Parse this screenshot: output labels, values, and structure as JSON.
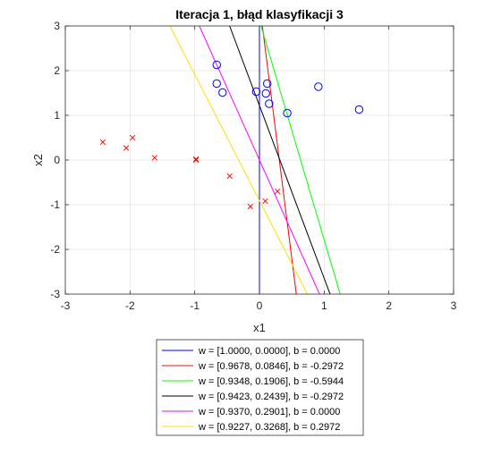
{
  "chart_data": {
    "type": "scatter",
    "title": "Iteracja 1, błąd klasyfikacji 3",
    "xlabel": "x1",
    "ylabel": "x2",
    "xlim": [
      -3,
      3
    ],
    "ylim": [
      -3,
      3
    ],
    "xticks": [
      -3,
      -2,
      -1,
      0,
      1,
      2,
      3
    ],
    "yticks": [
      -3,
      -2,
      -1,
      0,
      1,
      2,
      3
    ],
    "xtick_labels": [
      "-3",
      "-2",
      "-1",
      "0",
      "1",
      "2",
      "3"
    ],
    "ytick_labels": [
      "-3",
      "-2",
      "-1",
      "0",
      "1",
      "2",
      "3"
    ],
    "grid": true,
    "legend_position": "bottom-outside",
    "point_sets": [
      {
        "marker": "circle",
        "color": "#0000ff",
        "points": [
          [
            -0.66,
            2.13
          ],
          [
            -0.66,
            1.71
          ],
          [
            -0.57,
            1.51
          ],
          [
            -0.05,
            1.53
          ],
          [
            0.12,
            1.71
          ],
          [
            0.1,
            1.49
          ],
          [
            0.15,
            1.26
          ],
          [
            0.43,
            1.05
          ],
          [
            0.91,
            1.64
          ],
          [
            1.54,
            1.13
          ]
        ]
      },
      {
        "marker": "x",
        "color": "#ff0000",
        "points": [
          [
            -2.42,
            0.4
          ],
          [
            -2.06,
            0.27
          ],
          [
            -1.96,
            0.5
          ],
          [
            -1.62,
            0.05
          ],
          [
            -0.98,
            0.02
          ],
          [
            -0.98,
            0.0
          ],
          [
            -0.46,
            -0.36
          ],
          [
            -0.14,
            -1.04
          ],
          [
            0.09,
            -0.92
          ],
          [
            0.28,
            -0.7
          ]
        ]
      }
    ],
    "lines": [
      {
        "label": "w = [1.0000, 0.0000], b = 0.0000",
        "w": [
          1.0,
          0.0
        ],
        "b": 0.0,
        "color": "#0000ff"
      },
      {
        "label": "w = [0.9678, 0.0846], b = -0.2972",
        "w": [
          0.9678,
          0.0846
        ],
        "b": -0.2972,
        "color": "#ff0000"
      },
      {
        "label": "w = [0.9348, 0.1906], b = -0.5944",
        "w": [
          0.9348,
          0.1906
        ],
        "b": -0.5944,
        "color": "#00ff00"
      },
      {
        "label": "w = [0.9423, 0.2439], b = -0.2972",
        "w": [
          0.9423,
          0.2439
        ],
        "b": -0.2972,
        "color": "#000000"
      },
      {
        "label": "w = [0.9370, 0.2901], b = 0.0000",
        "w": [
          0.937,
          0.2901
        ],
        "b": 0.0,
        "color": "#ff00ff"
      },
      {
        "label": "w = [0.9227, 0.3268], b = 0.2972",
        "w": [
          0.9227,
          0.3268
        ],
        "b": 0.2972,
        "color": "#ffdd00"
      }
    ]
  }
}
